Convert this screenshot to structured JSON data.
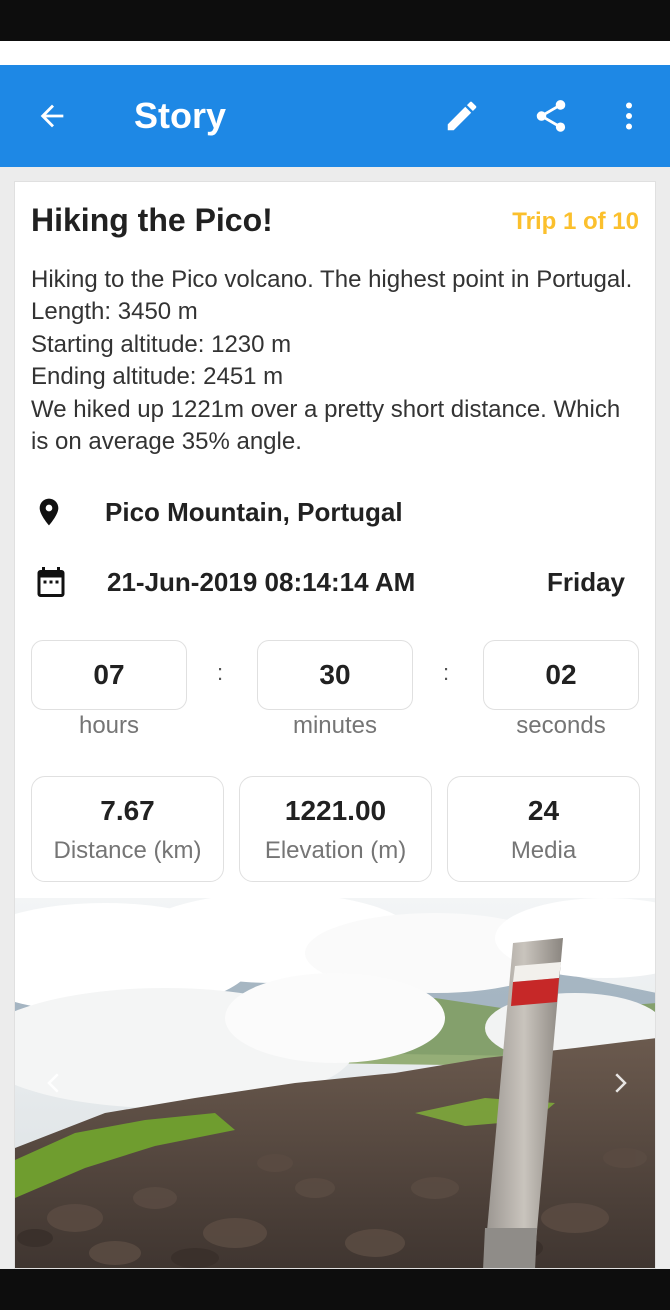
{
  "app_bar": {
    "title": "Story",
    "background": "#1e88e5",
    "icons": [
      "arrow-back-icon",
      "pencil-icon",
      "share-icon",
      "more-vert-icon"
    ]
  },
  "trip": {
    "title": "Hiking the Pico!",
    "counter": "Trip 1 of 10",
    "counter_color": "#fbc02d",
    "description": [
      "Hiking to the Pico volcano. The highest point in Portugal.",
      "Length: 3450 m",
      "Starting altitude: 1230 m",
      "Ending altitude: 2451 m",
      "We hiked up 1221m over a pretty short distance. Which",
      "is on average 35% angle."
    ],
    "location": "Pico Mountain, Portugal",
    "datetime": "21-Jun-2019 08:14:14 AM",
    "weekday": "Friday"
  },
  "duration": {
    "hours": "07",
    "minutes": "30",
    "seconds": "02",
    "separator": ":",
    "hours_label": "hours",
    "minutes_label": "minutes",
    "seconds_label": "seconds"
  },
  "stats": {
    "distance_value": "7.67",
    "distance_label": "Distance (km)",
    "elevation_value": "1221.00",
    "elevation_label": "Elevation (m)",
    "media_value": "24",
    "media_label": "Media"
  },
  "gallery": {
    "icons": [
      "chevron-left-icon",
      "chevron-right-icon"
    ]
  }
}
